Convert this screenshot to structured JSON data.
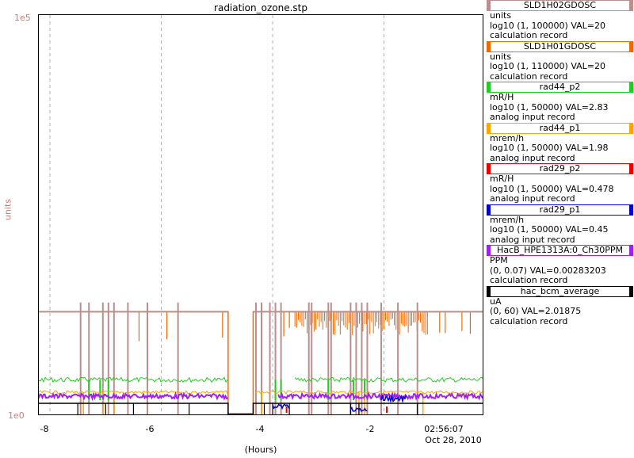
{
  "plot": {
    "title": "radiation_ozone.stp",
    "y_axis_label": "units",
    "y_max_label": "1e5",
    "y_min_label": "1e0",
    "x_ticks": [
      "-8",
      "-6",
      "-4",
      "-2"
    ],
    "x_label": "(Hours)",
    "timestamp_time": "02:56:07",
    "timestamp_date": "Oct 28, 2010"
  },
  "chart_data": {
    "type": "line",
    "title": "radiation_ozone.stp",
    "xlabel": "(Hours)",
    "ylabel": "units",
    "xlim": [
      -8.2,
      -0.2
    ],
    "y_scale": "log",
    "ylim": [
      1,
      100000
    ],
    "grid": true,
    "legend_position": "right",
    "x_tick_values": [
      -8,
      -6,
      -4,
      -2
    ],
    "series": [
      {
        "name": "SLD1H02GDOSC",
        "color": "#bc8f8f",
        "typical_value": 20
      },
      {
        "name": "SLD1H01GDOSC",
        "color": "#ee6a00",
        "typical_value": 20
      },
      {
        "name": "rad44_p2",
        "color": "#22cc22",
        "typical_value": 2.83
      },
      {
        "name": "rad44_p1",
        "color": "#ffa500",
        "typical_value": 1.98
      },
      {
        "name": "rad29_p2",
        "color": "#ee0000",
        "typical_value": 0.478
      },
      {
        "name": "rad29_p1",
        "color": "#0000cc",
        "typical_value": 0.45
      },
      {
        "name": "HacB_HPE1313A:0_Ch30PPM",
        "color": "#a020f0",
        "typical_value": 0.00283203
      },
      {
        "name": "hac_bcm_average",
        "color": "#000000",
        "typical_value": 2.01875
      }
    ]
  },
  "legend": [
    {
      "name": "SLD1H02GDOSC",
      "color": "#bc8f8f",
      "units": "units",
      "range": "log10 (1, 100000) VAL=20",
      "record": "calculation record"
    },
    {
      "name": "SLD1H01GDOSC",
      "color": "#ee6a00",
      "units": "units",
      "range": "log10 (1, 110000) VAL=20",
      "record": "calculation record"
    },
    {
      "name": "rad44_p2",
      "color": "#22cc22",
      "units": "mR/H",
      "range": "log10 (1, 50000) VAL=2.83",
      "record": "analog input record"
    },
    {
      "name": "rad44_p1",
      "color": "#ffa500",
      "units": "mrem/h",
      "range": "log10 (1, 50000) VAL=1.98",
      "record": "analog input record"
    },
    {
      "name": "rad29_p2",
      "color": "#ee0000",
      "units": "mR/H",
      "range": "log10 (1, 50000) VAL=0.478",
      "record": "analog input record"
    },
    {
      "name": "rad29_p1",
      "color": "#0000cc",
      "units": "mrem/h",
      "range": "log10 (1, 50000) VAL=0.45",
      "record": "analog input record"
    },
    {
      "name": "HacB_HPE1313A:0_Ch30PPM",
      "color": "#a020f0",
      "units": "PPM",
      "range": "(0, 0.07) VAL=0.00283203",
      "record": "calculation record"
    },
    {
      "name": "hac_bcm_average",
      "color": "#000000",
      "units": "uA",
      "range": "(0, 60) VAL=2.01875",
      "record": "calculation record"
    }
  ]
}
